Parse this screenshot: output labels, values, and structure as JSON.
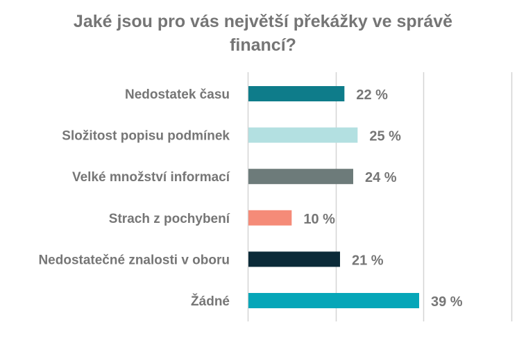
{
  "chart_data": {
    "type": "bar",
    "orientation": "horizontal",
    "title_lines": [
      "Jaké jsou pro vás největší překážky ve správě",
      "financí?"
    ],
    "categories": [
      "Nedostatek času",
      "Složitost popisu podmínek",
      "Velké množství informací",
      "Strach z pochybení",
      "Nedostatečné znalosti v oboru",
      "Žádné"
    ],
    "values": [
      22,
      25,
      24,
      10,
      21,
      39
    ],
    "value_labels": [
      "22 %",
      "25 %",
      "24 %",
      "10 %",
      "21 %",
      "39 %"
    ],
    "bar_colors": [
      "#0E7C8A",
      "#B3E0E1",
      "#6D7B7A",
      "#F58B78",
      "#0B2A38",
      "#06A6B8"
    ],
    "xlim": [
      0,
      60
    ],
    "grid": true,
    "legend": false
  }
}
